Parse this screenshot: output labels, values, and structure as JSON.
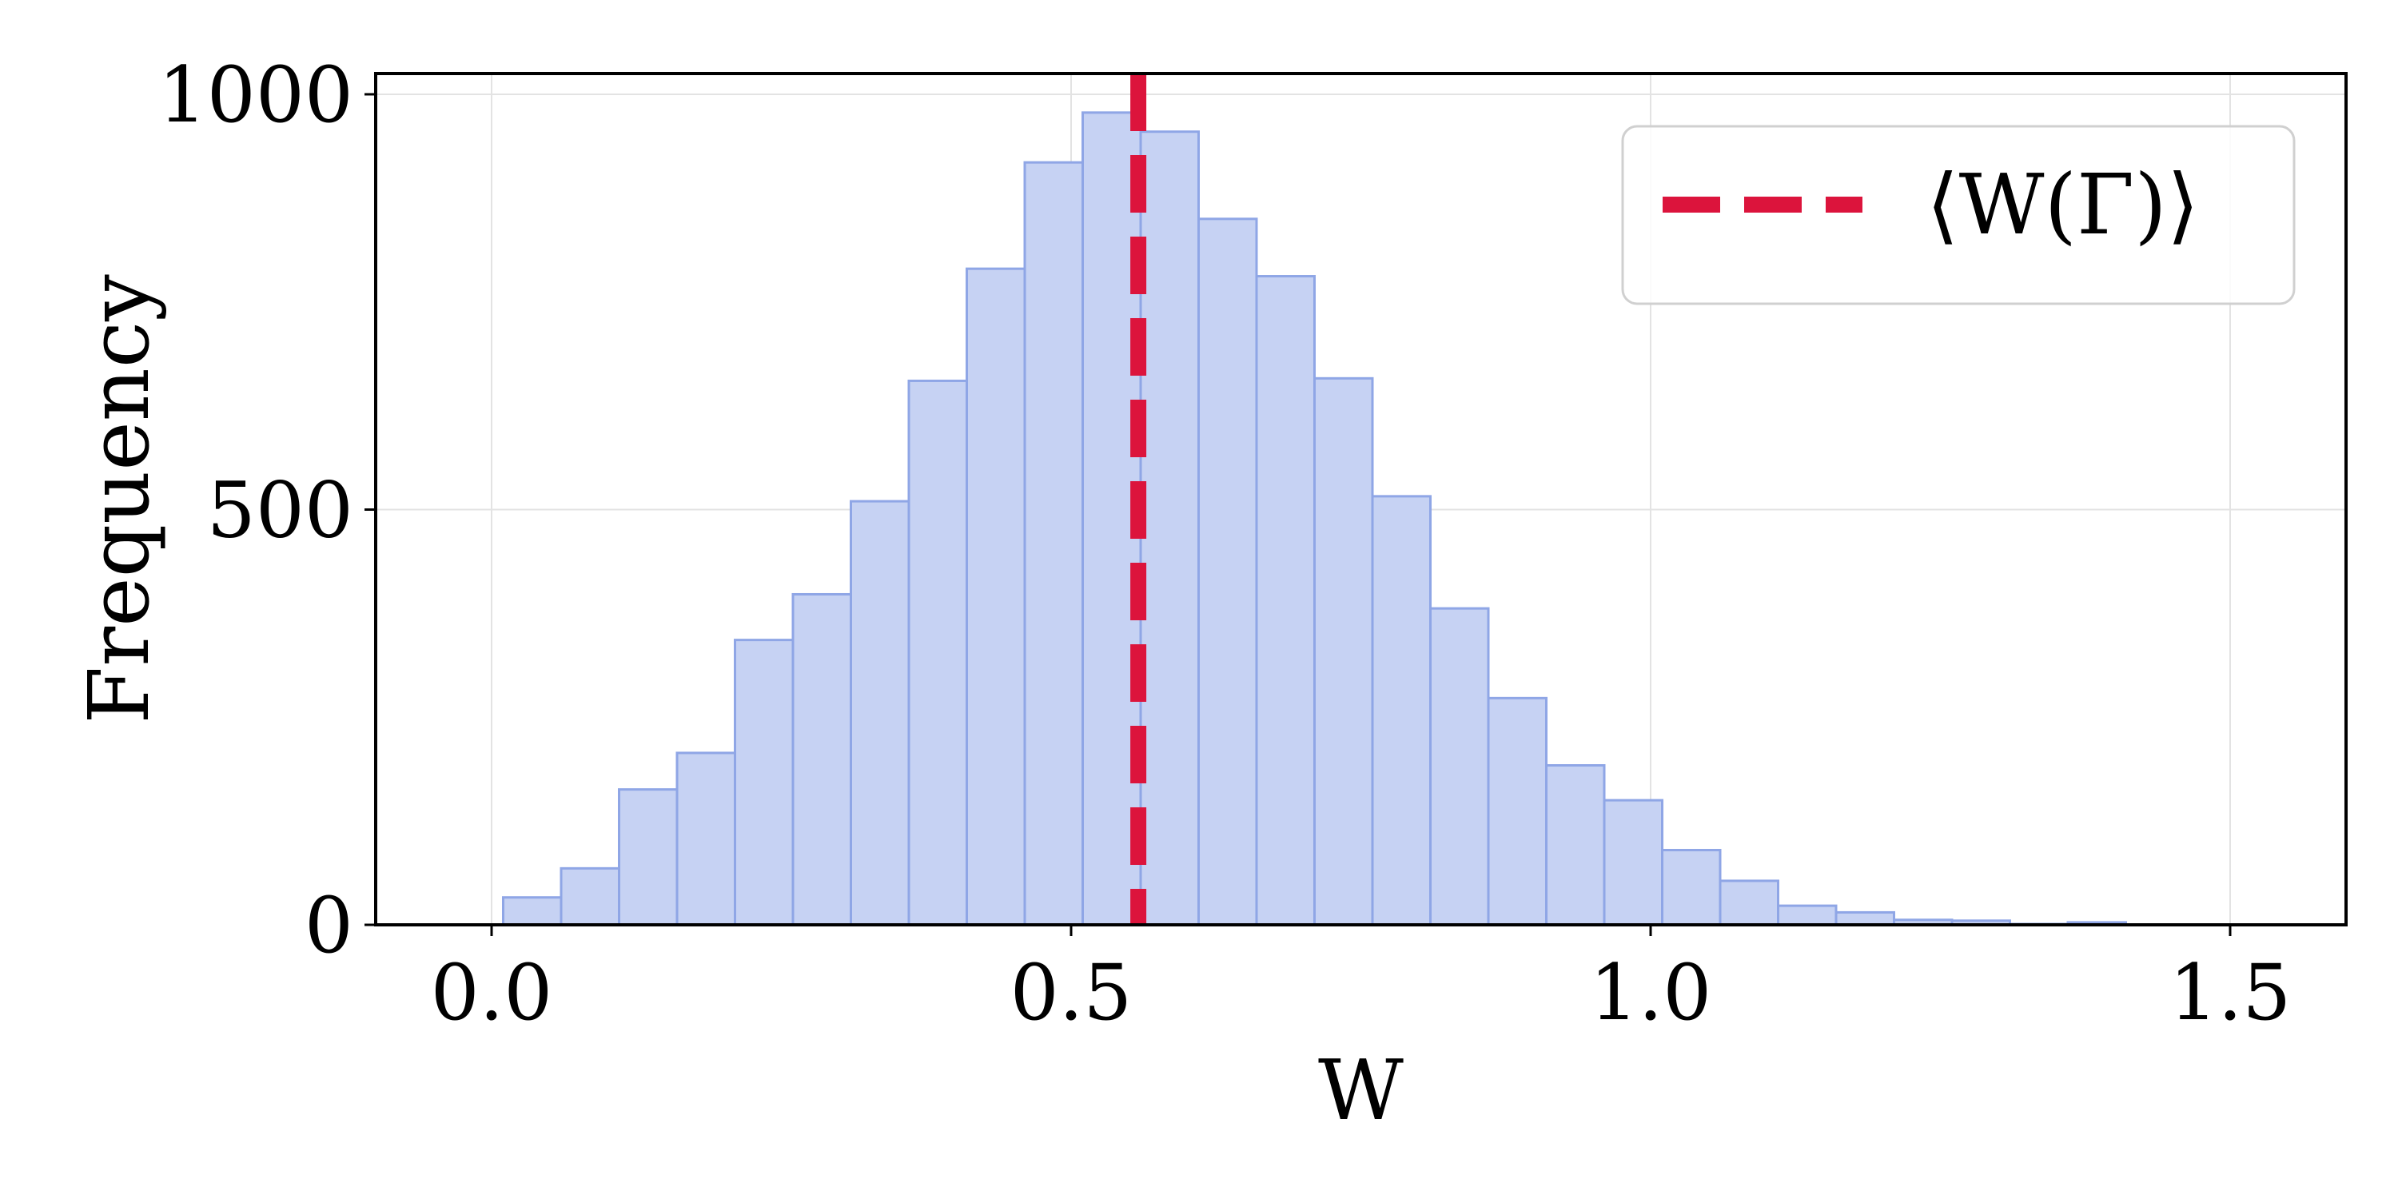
{
  "chart_data": {
    "type": "bar",
    "subtype": "histogram",
    "xlabel": "W",
    "ylabel": "Frequency",
    "xlim": [
      -0.1,
      1.6
    ],
    "ylim": [
      0,
      1025
    ],
    "x_ticks": [
      "0.0",
      "0.5",
      "1.0",
      "1.5"
    ],
    "x_tick_values": [
      0.0,
      0.5,
      1.0,
      1.5
    ],
    "y_ticks": [
      "0",
      "500",
      "1000"
    ],
    "y_tick_values": [
      0,
      500,
      1000
    ],
    "grid": true,
    "bar_color": "#c6d2f3",
    "bar_edge_color": "#8fa6e6",
    "bin_edges": [
      0.01,
      0.06,
      0.11,
      0.16,
      0.21,
      0.26,
      0.31,
      0.36,
      0.41,
      0.46,
      0.51,
      0.56,
      0.61,
      0.66,
      0.71,
      0.76,
      0.81,
      0.86,
      0.91,
      0.96,
      1.01,
      1.06,
      1.11,
      1.16,
      1.21,
      1.26,
      1.31,
      1.36,
      1.41
    ],
    "counts": [
      33,
      68,
      163,
      207,
      343,
      398,
      510,
      655,
      790,
      918,
      978,
      955,
      850,
      781,
      658,
      516,
      381,
      273,
      192,
      150,
      90,
      53,
      23,
      15,
      6,
      5,
      1,
      3
    ],
    "mean_line": {
      "x": 0.558,
      "color": "#dc143c",
      "style": "dashed",
      "label": "⟨W(Γ)⟩"
    },
    "legend": {
      "position": "top-right",
      "entries": [
        "⟨W(Γ)⟩"
      ]
    }
  }
}
